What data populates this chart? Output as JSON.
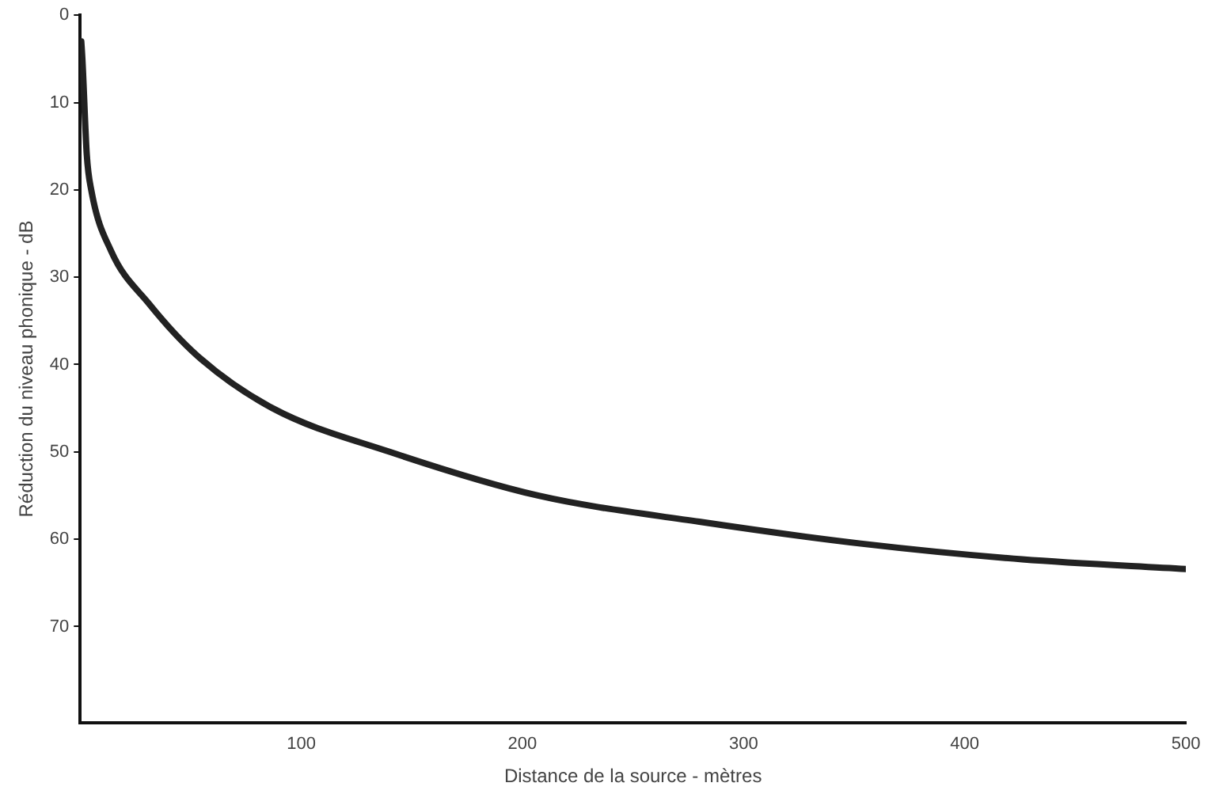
{
  "chart_data": {
    "type": "line",
    "xlabel": "Distance de la source - mètres",
    "ylabel": "Réduction du niveau phonique - dB",
    "x": [
      0.5,
      1,
      3,
      5,
      14,
      31,
      53,
      87,
      140,
      207,
      280,
      353,
      426,
      500
    ],
    "series": [
      {
        "color": "#222222",
        "values": [
          3,
          5,
          16,
          20,
          27,
          33,
          39,
          45,
          50,
          55,
          58,
          60.5,
          62.3,
          63.4
        ]
      }
    ],
    "xlim": [
      0,
      500
    ],
    "xticks": [
      100,
      200,
      300,
      400,
      500
    ],
    "ylim": [
      81,
      0
    ],
    "yticks": [
      0,
      10,
      20,
      30,
      40,
      50,
      60,
      70
    ],
    "grid": false,
    "legend": false,
    "marker": "none",
    "line_style": "solid"
  }
}
